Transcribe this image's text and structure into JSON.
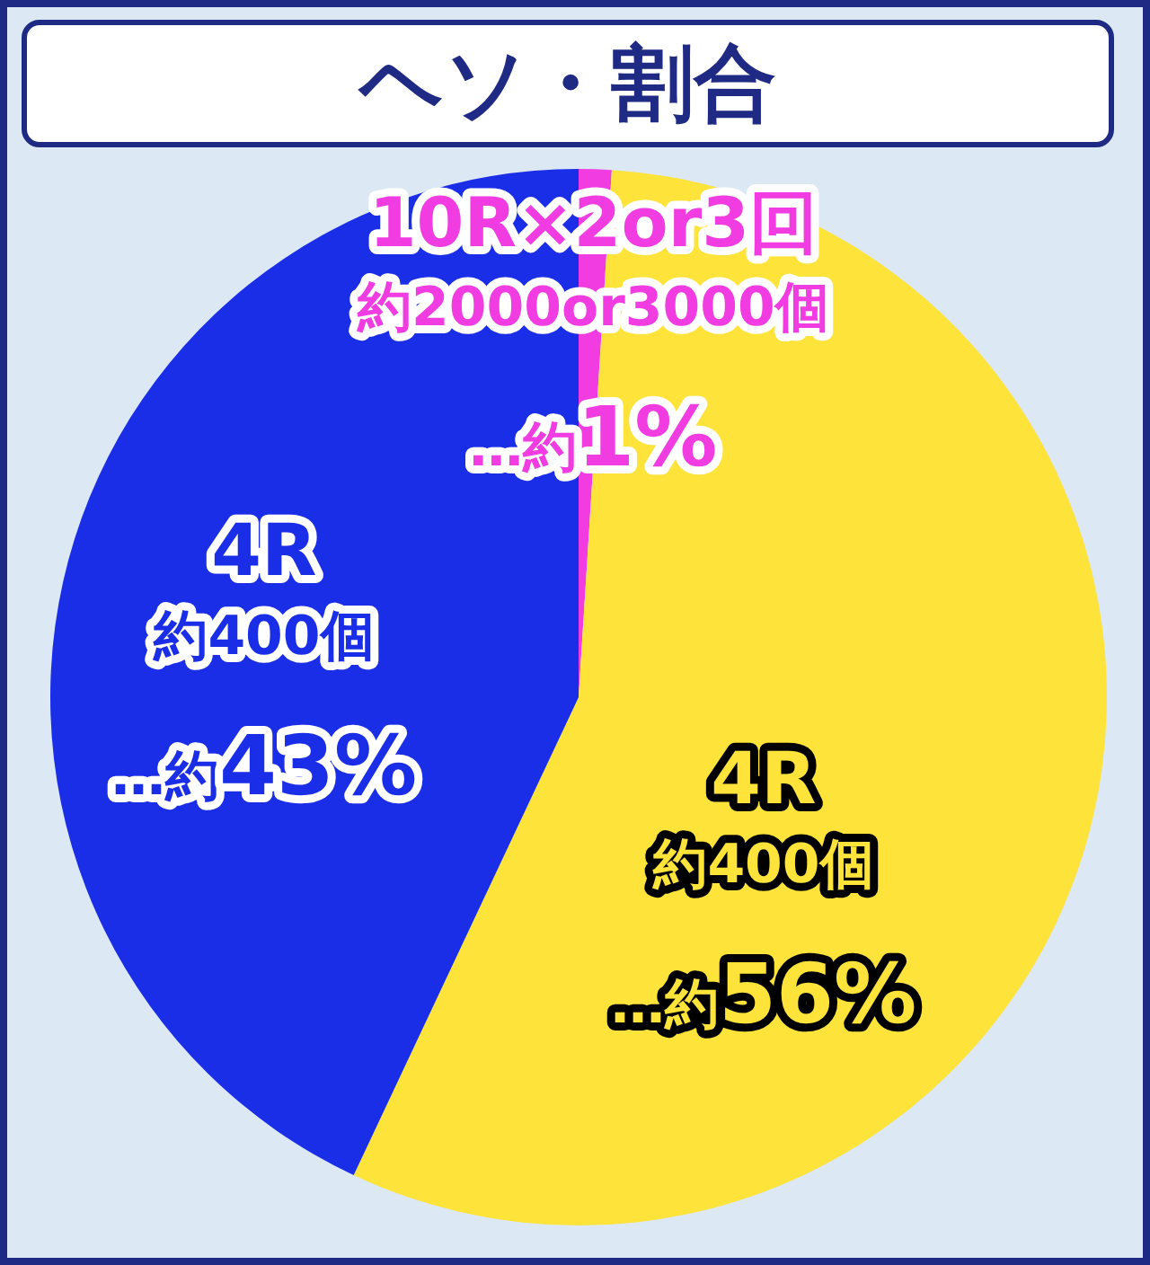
{
  "chart_data": {
    "type": "pie",
    "title": "ヘソ・割合",
    "categories": [
      "10R×2or3回約2000or3000個",
      "4R約400個",
      "4R約400個"
    ],
    "values": [
      1,
      56,
      43
    ],
    "colors": [
      "#f03ce0",
      "#fde33a",
      "#1a2ee8"
    ],
    "value_labels": [
      "…約1%",
      "…約56%",
      "…約43%"
    ]
  }
}
